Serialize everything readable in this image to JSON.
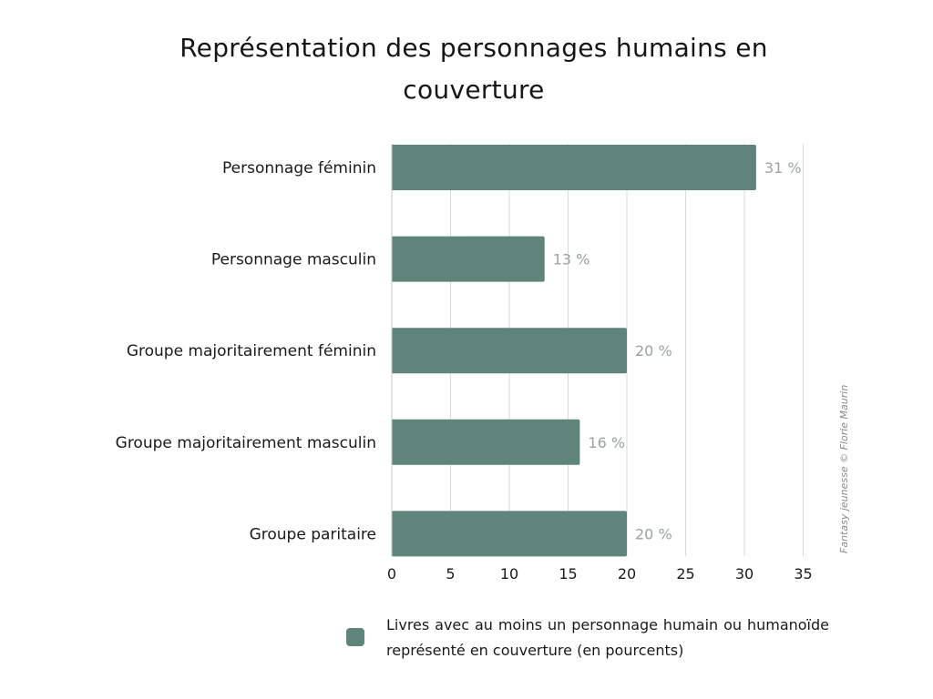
{
  "chart_data": {
    "type": "bar",
    "orientation": "horizontal",
    "title": "Représentation des personnages humains en couverture",
    "categories": [
      "Personnage féminin",
      "Personnage masculin",
      "Groupe majoritairement féminin",
      "Groupe majoritairement masculin",
      "Groupe paritaire"
    ],
    "series": [
      {
        "name": "Livres avec au moins un personnage humain ou humanoïde représenté en couverture (en pourcents)",
        "values": [
          31,
          13,
          20,
          16,
          20
        ],
        "value_labels": [
          "31 %",
          "13 %",
          "20 %",
          "16 %",
          "20 %"
        ],
        "color": "#5f8479"
      }
    ],
    "xticks": [
      "0",
      "5",
      "10",
      "15",
      "20",
      "25",
      "30",
      "35"
    ],
    "xlim": [
      0,
      35
    ],
    "grid": "vertical",
    "legend_position": "bottom",
    "credit": "Fantasy jeunesse © Florie Maurin"
  }
}
